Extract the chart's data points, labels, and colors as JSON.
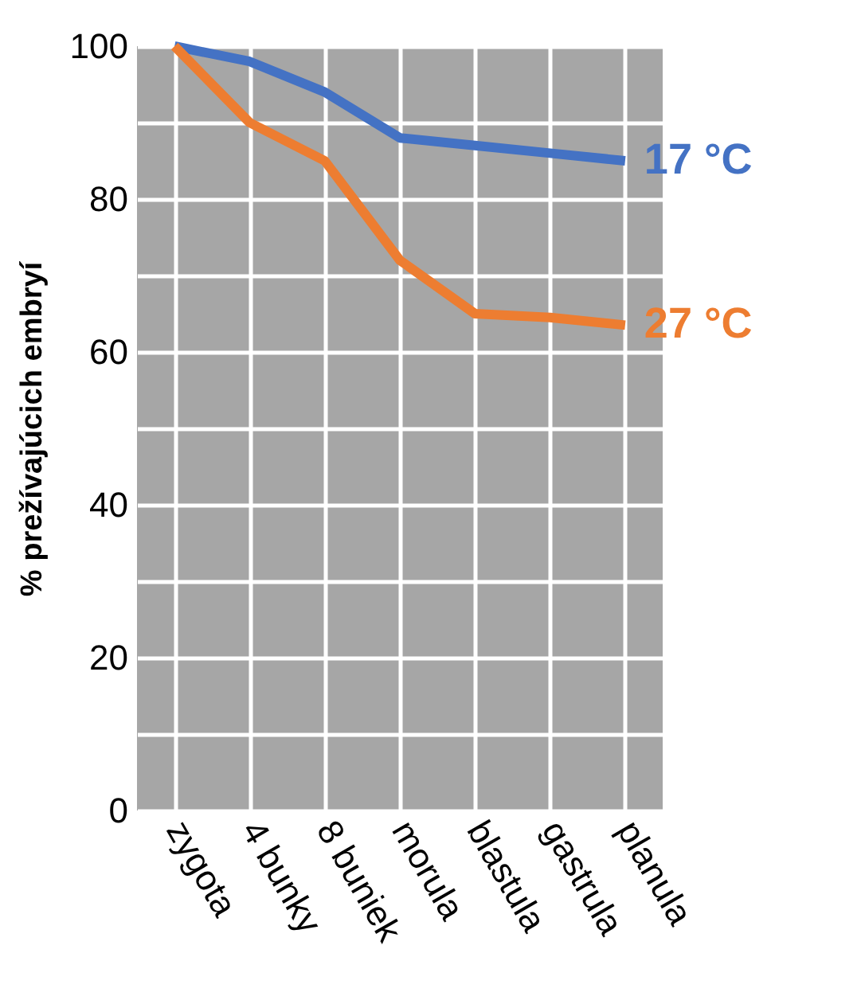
{
  "chart_data": {
    "type": "line",
    "ylabel": "% prežívajúcich embryí",
    "categories": [
      "zygota",
      "4 bunky",
      "8 buniek",
      "morula",
      "blastula",
      "gastrula",
      "planula"
    ],
    "series": [
      {
        "name": "17 °C",
        "color": "#4472c4",
        "values": [
          100,
          98,
          94,
          88,
          87,
          86,
          85
        ]
      },
      {
        "name": "27 °C",
        "color": "#ed7d31",
        "values": [
          100,
          90,
          85,
          72,
          65,
          64.5,
          63.5
        ]
      }
    ],
    "ylim": [
      0,
      100
    ],
    "yticks": [
      0,
      {
        "value": 10,
        "label": null
      },
      20,
      {
        "value": 30,
        "label": null
      },
      40,
      {
        "value": 50,
        "label": null
      },
      60,
      {
        "value": 70,
        "label": null
      },
      80,
      {
        "value": 90,
        "label": null
      },
      100
    ],
    "grid": true,
    "legend": false,
    "marker": "none",
    "line_style": "solid"
  }
}
